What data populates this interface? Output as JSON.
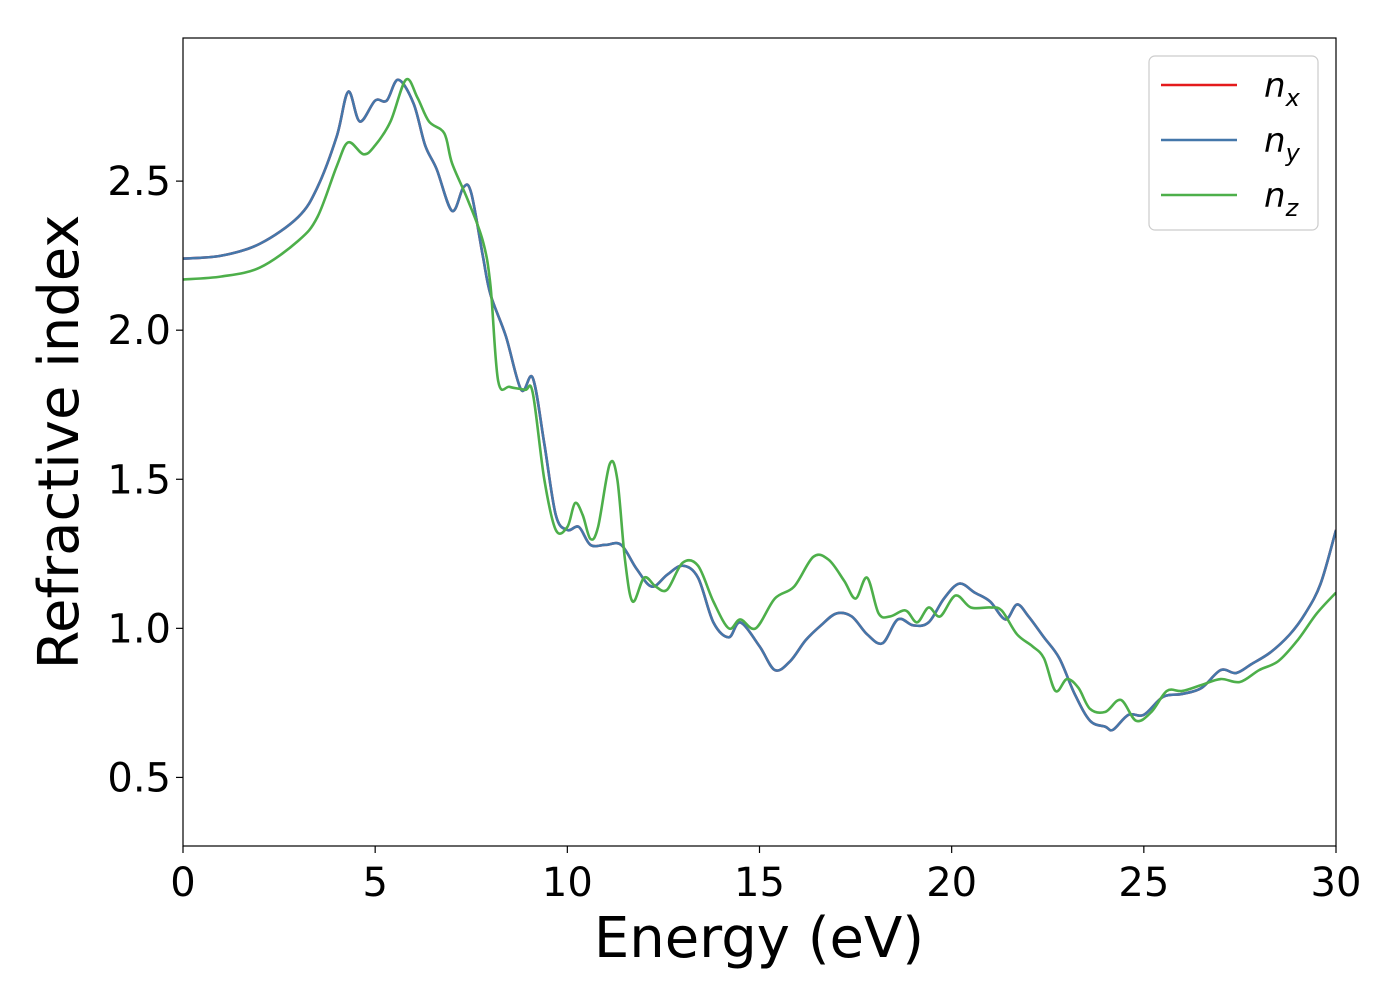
{
  "chart_data": {
    "type": "line",
    "title": "",
    "xlabel": "Energy (eV)",
    "ylabel": "Refractive index",
    "xlim": [
      0,
      30
    ],
    "ylim": [
      0.27,
      2.98
    ],
    "xticks": [
      0,
      5,
      10,
      15,
      20,
      25,
      30
    ],
    "yticks": [
      0.5,
      1.0,
      1.5,
      2.0,
      2.5
    ],
    "xtick_labels": [
      "0",
      "5",
      "10",
      "15",
      "20",
      "25",
      "30"
    ],
    "ytick_labels": [
      "0.5",
      "1.0",
      "1.5",
      "2.0",
      "2.5"
    ],
    "grid": false,
    "legend_position": "top-right",
    "series": [
      {
        "name": "n",
        "subscript": "x",
        "color": "#e41a1c",
        "points": [
          [
            0,
            2.24
          ],
          [
            1,
            2.25
          ],
          [
            2,
            2.29
          ],
          [
            3,
            2.38
          ],
          [
            3.5,
            2.48
          ],
          [
            4,
            2.65
          ],
          [
            4.3,
            2.8
          ],
          [
            4.6,
            2.7
          ],
          [
            5,
            2.77
          ],
          [
            5.3,
            2.77
          ],
          [
            5.6,
            2.84
          ],
          [
            6,
            2.76
          ],
          [
            6.3,
            2.62
          ],
          [
            6.6,
            2.54
          ],
          [
            7,
            2.4
          ],
          [
            7.3,
            2.48
          ],
          [
            7.5,
            2.46
          ],
          [
            7.8,
            2.25
          ],
          [
            8,
            2.12
          ],
          [
            8.4,
            1.98
          ],
          [
            8.8,
            1.8
          ],
          [
            9.1,
            1.84
          ],
          [
            9.4,
            1.62
          ],
          [
            9.7,
            1.38
          ],
          [
            10,
            1.33
          ],
          [
            10.3,
            1.34
          ],
          [
            10.6,
            1.28
          ],
          [
            11,
            1.28
          ],
          [
            11.4,
            1.28
          ],
          [
            11.8,
            1.2
          ],
          [
            12.2,
            1.14
          ],
          [
            12.6,
            1.18
          ],
          [
            13,
            1.21
          ],
          [
            13.4,
            1.17
          ],
          [
            13.8,
            1.02
          ],
          [
            14.2,
            0.97
          ],
          [
            14.5,
            1.02
          ],
          [
            15,
            0.94
          ],
          [
            15.4,
            0.86
          ],
          [
            15.8,
            0.89
          ],
          [
            16.2,
            0.96
          ],
          [
            16.6,
            1.01
          ],
          [
            17,
            1.05
          ],
          [
            17.4,
            1.04
          ],
          [
            17.8,
            0.98
          ],
          [
            18.2,
            0.95
          ],
          [
            18.6,
            1.03
          ],
          [
            19,
            1.01
          ],
          [
            19.4,
            1.02
          ],
          [
            19.8,
            1.1
          ],
          [
            20.2,
            1.15
          ],
          [
            20.6,
            1.12
          ],
          [
            21,
            1.09
          ],
          [
            21.4,
            1.03
          ],
          [
            21.7,
            1.08
          ],
          [
            22,
            1.04
          ],
          [
            22.4,
            0.97
          ],
          [
            22.8,
            0.9
          ],
          [
            23.2,
            0.78
          ],
          [
            23.6,
            0.69
          ],
          [
            24,
            0.67
          ],
          [
            24.2,
            0.66
          ],
          [
            24.6,
            0.71
          ],
          [
            25,
            0.71
          ],
          [
            25.5,
            0.77
          ],
          [
            26,
            0.78
          ],
          [
            26.5,
            0.8
          ],
          [
            27,
            0.86
          ],
          [
            27.4,
            0.85
          ],
          [
            27.8,
            0.88
          ],
          [
            28.3,
            0.92
          ],
          [
            28.8,
            0.98
          ],
          [
            29.2,
            1.05
          ],
          [
            29.6,
            1.15
          ],
          [
            30,
            1.33
          ]
        ]
      },
      {
        "name": "n",
        "subscript": "y",
        "color": "#4477aa",
        "points": [
          [
            0,
            2.24
          ],
          [
            1,
            2.25
          ],
          [
            2,
            2.29
          ],
          [
            3,
            2.38
          ],
          [
            3.5,
            2.48
          ],
          [
            4,
            2.65
          ],
          [
            4.3,
            2.8
          ],
          [
            4.6,
            2.7
          ],
          [
            5,
            2.77
          ],
          [
            5.3,
            2.77
          ],
          [
            5.6,
            2.84
          ],
          [
            6,
            2.76
          ],
          [
            6.3,
            2.62
          ],
          [
            6.6,
            2.54
          ],
          [
            7,
            2.4
          ],
          [
            7.3,
            2.48
          ],
          [
            7.5,
            2.46
          ],
          [
            7.8,
            2.25
          ],
          [
            8,
            2.12
          ],
          [
            8.4,
            1.98
          ],
          [
            8.8,
            1.8
          ],
          [
            9.1,
            1.84
          ],
          [
            9.4,
            1.62
          ],
          [
            9.7,
            1.38
          ],
          [
            10,
            1.33
          ],
          [
            10.3,
            1.34
          ],
          [
            10.6,
            1.28
          ],
          [
            11,
            1.28
          ],
          [
            11.4,
            1.28
          ],
          [
            11.8,
            1.2
          ],
          [
            12.2,
            1.14
          ],
          [
            12.6,
            1.18
          ],
          [
            13,
            1.21
          ],
          [
            13.4,
            1.17
          ],
          [
            13.8,
            1.02
          ],
          [
            14.2,
            0.97
          ],
          [
            14.5,
            1.02
          ],
          [
            15,
            0.94
          ],
          [
            15.4,
            0.86
          ],
          [
            15.8,
            0.89
          ],
          [
            16.2,
            0.96
          ],
          [
            16.6,
            1.01
          ],
          [
            17,
            1.05
          ],
          [
            17.4,
            1.04
          ],
          [
            17.8,
            0.98
          ],
          [
            18.2,
            0.95
          ],
          [
            18.6,
            1.03
          ],
          [
            19,
            1.01
          ],
          [
            19.4,
            1.02
          ],
          [
            19.8,
            1.1
          ],
          [
            20.2,
            1.15
          ],
          [
            20.6,
            1.12
          ],
          [
            21,
            1.09
          ],
          [
            21.4,
            1.03
          ],
          [
            21.7,
            1.08
          ],
          [
            22,
            1.04
          ],
          [
            22.4,
            0.97
          ],
          [
            22.8,
            0.9
          ],
          [
            23.2,
            0.78
          ],
          [
            23.6,
            0.69
          ],
          [
            24,
            0.67
          ],
          [
            24.2,
            0.66
          ],
          [
            24.6,
            0.71
          ],
          [
            25,
            0.71
          ],
          [
            25.5,
            0.77
          ],
          [
            26,
            0.78
          ],
          [
            26.5,
            0.8
          ],
          [
            27,
            0.86
          ],
          [
            27.4,
            0.85
          ],
          [
            27.8,
            0.88
          ],
          [
            28.3,
            0.92
          ],
          [
            28.8,
            0.98
          ],
          [
            29.2,
            1.05
          ],
          [
            29.6,
            1.15
          ],
          [
            30,
            1.33
          ]
        ]
      },
      {
        "name": "n",
        "subscript": "z",
        "color": "#4daf4a",
        "points": [
          [
            0,
            2.17
          ],
          [
            1,
            2.18
          ],
          [
            2,
            2.21
          ],
          [
            3,
            2.3
          ],
          [
            3.5,
            2.38
          ],
          [
            4,
            2.55
          ],
          [
            4.3,
            2.63
          ],
          [
            4.7,
            2.59
          ],
          [
            5,
            2.62
          ],
          [
            5.4,
            2.7
          ],
          [
            5.8,
            2.84
          ],
          [
            6.1,
            2.78
          ],
          [
            6.4,
            2.7
          ],
          [
            6.8,
            2.66
          ],
          [
            7,
            2.56
          ],
          [
            7.4,
            2.44
          ],
          [
            7.8,
            2.3
          ],
          [
            8,
            2.15
          ],
          [
            8.2,
            1.83
          ],
          [
            8.5,
            1.81
          ],
          [
            8.9,
            1.8
          ],
          [
            9.1,
            1.79
          ],
          [
            9.4,
            1.5
          ],
          [
            9.7,
            1.33
          ],
          [
            10,
            1.34
          ],
          [
            10.2,
            1.42
          ],
          [
            10.4,
            1.38
          ],
          [
            10.6,
            1.3
          ],
          [
            10.8,
            1.34
          ],
          [
            11.1,
            1.55
          ],
          [
            11.3,
            1.5
          ],
          [
            11.5,
            1.23
          ],
          [
            11.7,
            1.09
          ],
          [
            12,
            1.17
          ],
          [
            12.3,
            1.14
          ],
          [
            12.6,
            1.13
          ],
          [
            13,
            1.22
          ],
          [
            13.4,
            1.21
          ],
          [
            13.8,
            1.09
          ],
          [
            14.2,
            1.0
          ],
          [
            14.5,
            1.03
          ],
          [
            14.9,
            1.0
          ],
          [
            15.4,
            1.1
          ],
          [
            15.9,
            1.14
          ],
          [
            16.4,
            1.24
          ],
          [
            16.8,
            1.23
          ],
          [
            17.2,
            1.16
          ],
          [
            17.5,
            1.1
          ],
          [
            17.8,
            1.17
          ],
          [
            18.1,
            1.05
          ],
          [
            18.4,
            1.04
          ],
          [
            18.8,
            1.06
          ],
          [
            19.1,
            1.02
          ],
          [
            19.4,
            1.07
          ],
          [
            19.7,
            1.04
          ],
          [
            20.1,
            1.11
          ],
          [
            20.5,
            1.07
          ],
          [
            21,
            1.07
          ],
          [
            21.3,
            1.06
          ],
          [
            21.7,
            0.98
          ],
          [
            22.1,
            0.94
          ],
          [
            22.4,
            0.9
          ],
          [
            22.7,
            0.79
          ],
          [
            23,
            0.83
          ],
          [
            23.3,
            0.8
          ],
          [
            23.6,
            0.73
          ],
          [
            24,
            0.72
          ],
          [
            24.4,
            0.76
          ],
          [
            24.8,
            0.69
          ],
          [
            25.2,
            0.72
          ],
          [
            25.6,
            0.79
          ],
          [
            26,
            0.79
          ],
          [
            26.5,
            0.81
          ],
          [
            27,
            0.83
          ],
          [
            27.5,
            0.82
          ],
          [
            28,
            0.86
          ],
          [
            28.5,
            0.89
          ],
          [
            29,
            0.96
          ],
          [
            29.5,
            1.05
          ],
          [
            30,
            1.12
          ]
        ]
      }
    ]
  }
}
